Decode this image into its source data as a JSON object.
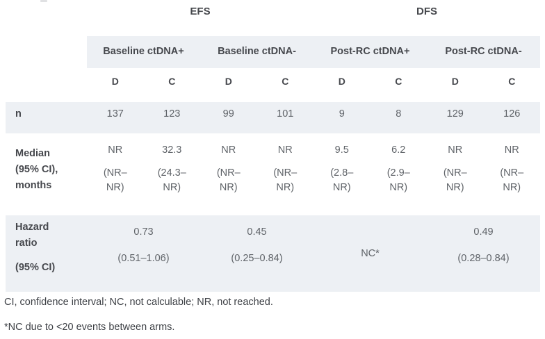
{
  "table": {
    "top_groups": [
      {
        "label": "EFS"
      },
      {
        "label": "DFS"
      }
    ],
    "col_groups": [
      {
        "label": "Baseline ctDNA+"
      },
      {
        "label": "Baseline ctDNA-"
      },
      {
        "label": "Post-RC ctDNA+"
      },
      {
        "label": "Post-RC ctDNA-"
      }
    ],
    "subheaders": [
      "D",
      "C",
      "D",
      "C",
      "D",
      "C",
      "D",
      "C"
    ],
    "rows": {
      "n": {
        "label": "n",
        "values": [
          "137",
          "123",
          "99",
          "101",
          "9",
          "8",
          "129",
          "126"
        ]
      },
      "median": {
        "label_line1": "Median",
        "label_line2": "(95% CI),",
        "label_line3": "months",
        "cells": [
          {
            "value": "NR",
            "ci1": "(NR–",
            "ci2": "NR)"
          },
          {
            "value": "32.3",
            "ci1": "(24.3–",
            "ci2": "NR)"
          },
          {
            "value": "NR",
            "ci1": "(NR–",
            "ci2": "NR)"
          },
          {
            "value": "NR",
            "ci1": "(NR–",
            "ci2": "NR)"
          },
          {
            "value": "9.5",
            "ci1": "(2.8–",
            "ci2": "NR)"
          },
          {
            "value": "6.2",
            "ci1": "(2.9–",
            "ci2": "NR)"
          },
          {
            "value": "NR",
            "ci1": "(NR–",
            "ci2": "NR)"
          },
          {
            "value": "NR",
            "ci1": "(NR–",
            "ci2": "NR)"
          }
        ]
      },
      "hazard": {
        "label_line1": "Hazard ratio",
        "label_line2": "(95% CI)",
        "cells": [
          {
            "value": "0.73",
            "ci": "(0.51–1.06)"
          },
          {
            "value": "0.45",
            "ci": "(0.25–0.84)"
          },
          {
            "value": "NC*",
            "ci": ""
          },
          {
            "value": "0.49",
            "ci": "(0.28–0.84)"
          }
        ]
      }
    }
  },
  "footnotes": {
    "abbreviations": "CI, confidence interval; NC, not calculable; NR, not reached.",
    "nc_note": "*NC due to <20 events between arms."
  },
  "colors": {
    "band_background": "#edf0f4",
    "header_text": "#46484d",
    "value_text": "#5f6368",
    "footnote_text": "#3e4146"
  }
}
